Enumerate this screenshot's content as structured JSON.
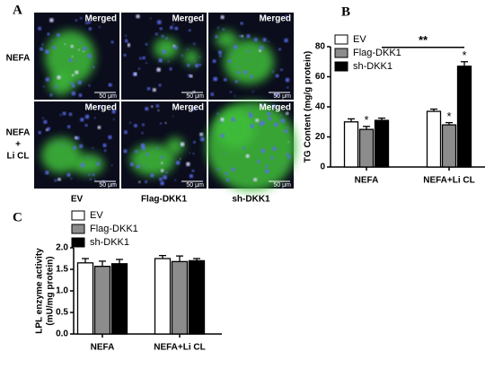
{
  "panel_a": {
    "label": "A",
    "rows": [
      [
        "NEFA"
      ],
      [
        "NEFA",
        "+",
        "Li CL"
      ]
    ],
    "columns": [
      "EV",
      "Flag-DKK1",
      "sh-DKK1"
    ],
    "images": [
      [
        {
          "label": "Merged",
          "scale": "50 μm"
        },
        {
          "label": "Merged",
          "scale": "50 μm"
        },
        {
          "label": "Merged",
          "scale": "50 μm"
        }
      ],
      [
        {
          "label": "Merged",
          "scale": "50 μm"
        },
        {
          "label": "Merged",
          "scale": "50 μm"
        },
        {
          "label": "Merged",
          "scale": "50 μm"
        }
      ]
    ]
  },
  "chart_data": [
    {
      "type": "bar",
      "panel": "B",
      "ylabel": "TG Content (mg/g protein)",
      "categories": [
        "NEFA",
        "NEFA+Li CL"
      ],
      "series": [
        {
          "name": "EV",
          "color": "#ffffff",
          "values": [
            30,
            37
          ],
          "errors": [
            2,
            1.5
          ]
        },
        {
          "name": "Flag-DKK1",
          "color": "#8c8c8c",
          "values": [
            25,
            28
          ],
          "errors": [
            2,
            1.5
          ],
          "significance": [
            "*",
            "*"
          ]
        },
        {
          "name": "sh-DKK1",
          "color": "#000000",
          "values": [
            31,
            67
          ],
          "errors": [
            1.5,
            3
          ],
          "significance": [
            null,
            "*"
          ]
        }
      ],
      "bracket_label": "**",
      "ylim": [
        0,
        80
      ],
      "yticks": [
        0,
        20,
        40,
        60,
        80
      ]
    },
    {
      "type": "bar",
      "panel": "C",
      "ylabel": [
        "LPL enzyme activity",
        "(mU/mg protein)"
      ],
      "categories": [
        "NEFA",
        "NEFA+Li CL"
      ],
      "series": [
        {
          "name": "EV",
          "color": "#ffffff",
          "values": [
            1.65,
            1.75
          ],
          "errors": [
            0.1,
            0.07
          ]
        },
        {
          "name": "Flag-DKK1",
          "color": "#8c8c8c",
          "values": [
            1.57,
            1.68
          ],
          "errors": [
            0.12,
            0.13
          ]
        },
        {
          "name": "sh-DKK1",
          "color": "#000000",
          "values": [
            1.63,
            1.7
          ],
          "errors": [
            0.1,
            0.05
          ]
        }
      ],
      "ylim": [
        0,
        2
      ],
      "yticks": [
        {
          "value": 0,
          "label": "0.0"
        },
        {
          "value": 0.5,
          "label": "0.5"
        },
        {
          "value": 1,
          "label": "1.0"
        },
        {
          "value": 1.5,
          "label": "1.5"
        },
        {
          "value": 2,
          "label": "2.0"
        }
      ]
    }
  ]
}
